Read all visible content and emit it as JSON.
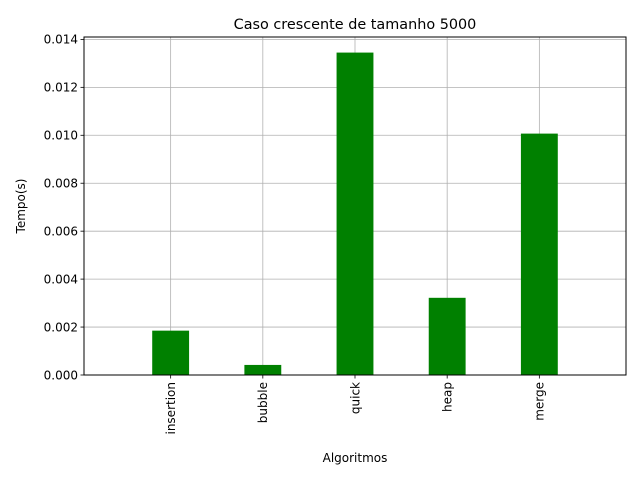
{
  "chart_data": {
    "type": "bar",
    "title": "Caso crescente de tamanho 5000",
    "xlabel": "Algoritmos",
    "ylabel": "Tempo(s)",
    "categories": [
      "insertion",
      "bubble",
      "quick",
      "heap",
      "merge"
    ],
    "values": [
      0.00185,
      0.00042,
      0.01345,
      0.00322,
      0.01007
    ],
    "ylim": [
      0,
      0.0141
    ],
    "yticks": [
      "0.000",
      "0.002",
      "0.004",
      "0.006",
      "0.008",
      "0.010",
      "0.012",
      "0.014"
    ],
    "bar_color": "#008000",
    "grid": true,
    "legend": "none"
  }
}
